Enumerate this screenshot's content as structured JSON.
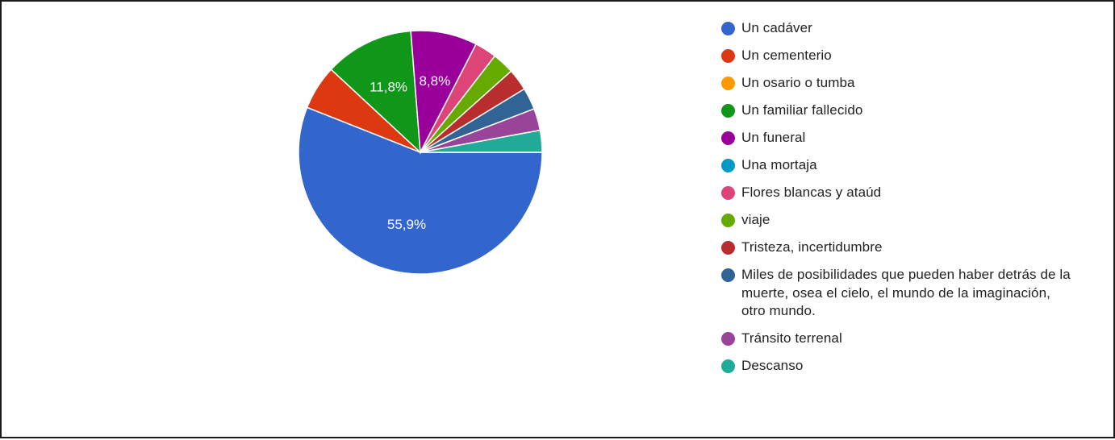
{
  "chart_data": {
    "type": "pie",
    "title": "",
    "legend_position": "right",
    "slices": [
      {
        "label": "Un cadáver",
        "value": 55.9,
        "value_label": "55,9%",
        "color": "#3366cc"
      },
      {
        "label": "Un cementerio",
        "value": 5.9,
        "value_label": "",
        "color": "#dc3912"
      },
      {
        "label": "Un osario o tumba",
        "value": 0,
        "value_label": "",
        "color": "#ff9900"
      },
      {
        "label": "Un familiar fallecido",
        "value": 11.8,
        "value_label": "11,8%",
        "color": "#109618"
      },
      {
        "label": "Un funeral",
        "value": 8.8,
        "value_label": "8,8%",
        "color": "#990099"
      },
      {
        "label": "Una mortaja",
        "value": 0,
        "value_label": "",
        "color": "#0099c6"
      },
      {
        "label": "Flores blancas y ataúd",
        "value": 2.9,
        "value_label": "",
        "color": "#dd4477"
      },
      {
        "label": "viaje",
        "value": 2.9,
        "value_label": "",
        "color": "#66aa00"
      },
      {
        "label": "Tristeza, incertidumbre",
        "value": 2.9,
        "value_label": "",
        "color": "#b82e2e"
      },
      {
        "label": "Miles de posibilidades que pueden haber detrás de la muerte, osea el cielo, el mundo de la imaginación, otro mundo.",
        "value": 2.9,
        "value_label": "",
        "color": "#316395"
      },
      {
        "label": "Tránsito terrenal",
        "value": 2.9,
        "value_label": "",
        "color": "#994499"
      },
      {
        "label": "Descanso",
        "value": 2.9,
        "value_label": "",
        "color": "#22aa99"
      }
    ]
  }
}
